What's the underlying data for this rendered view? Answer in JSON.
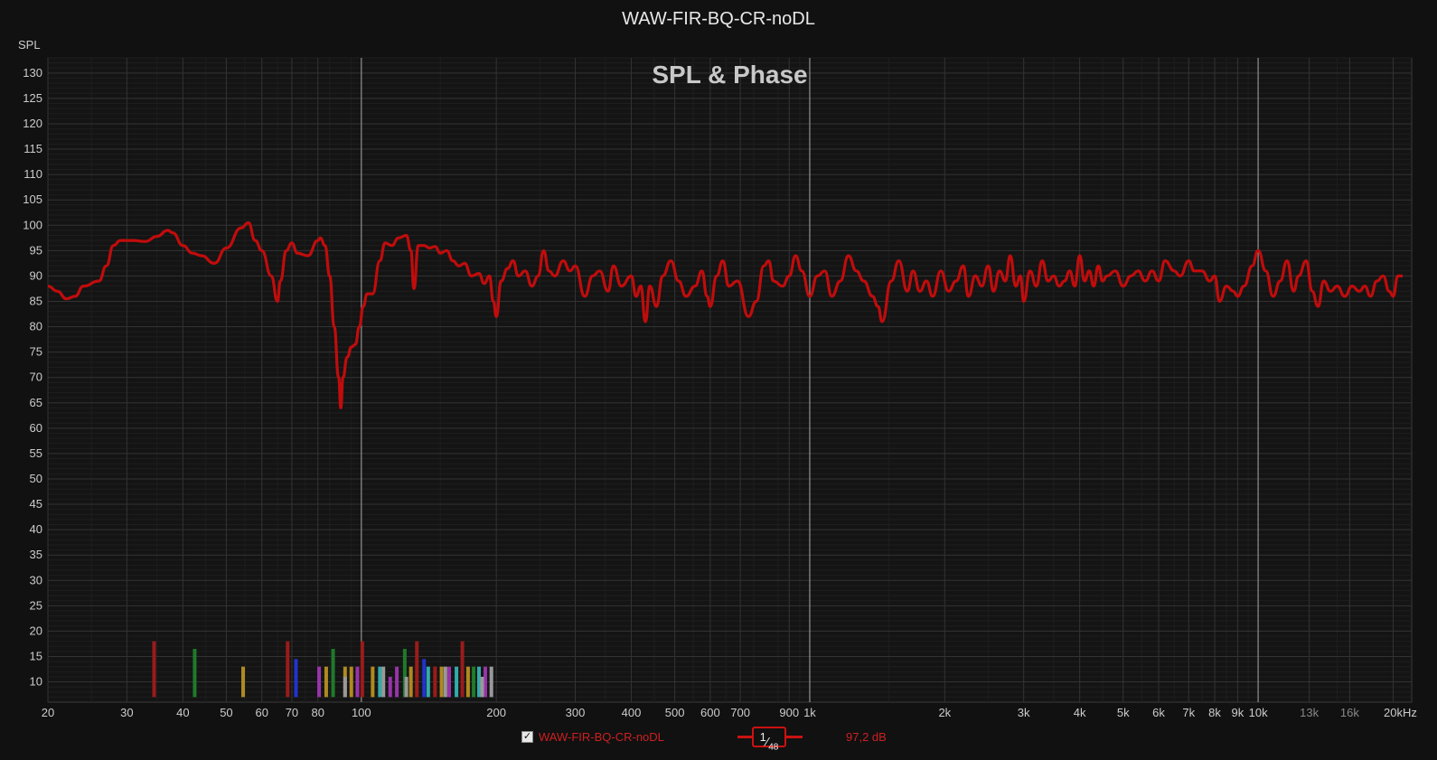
{
  "window_title": "WAW-FIR-BQ-CR-noDL",
  "graph_label": "SPL & Phase",
  "y_axis_label": "SPL",
  "x_unit": "Hz",
  "legend": {
    "series_name": "WAW-FIR-BQ-CR-noDL",
    "checked": true,
    "smoothing_num": "1",
    "smoothing_den": "48",
    "level": "97,2 dB"
  },
  "colors": {
    "background": "#111111",
    "trace": "#c00c0c",
    "grid": "#333333"
  },
  "chart_data": {
    "type": "line",
    "title": "SPL & Phase",
    "xlabel": "",
    "ylabel": "SPL",
    "x_scale": "log",
    "xlim": [
      20,
      22000
    ],
    "ylim": [
      6,
      133
    ],
    "grid": true,
    "x_ticks": [
      {
        "v": 20,
        "label": "20"
      },
      {
        "v": 30,
        "label": "30"
      },
      {
        "v": 40,
        "label": "40"
      },
      {
        "v": 50,
        "label": "50"
      },
      {
        "v": 60,
        "label": "60"
      },
      {
        "v": 70,
        "label": "70"
      },
      {
        "v": 80,
        "label": "80"
      },
      {
        "v": 100,
        "label": "100"
      },
      {
        "v": 200,
        "label": "200"
      },
      {
        "v": 300,
        "label": "300"
      },
      {
        "v": 400,
        "label": "400"
      },
      {
        "v": 500,
        "label": "500"
      },
      {
        "v": 600,
        "label": "600"
      },
      {
        "v": 700,
        "label": "700"
      },
      {
        "v": 900,
        "label": "900"
      },
      {
        "v": 1000,
        "label": "1k"
      },
      {
        "v": 2000,
        "label": "2k"
      },
      {
        "v": 3000,
        "label": "3k"
      },
      {
        "v": 4000,
        "label": "4k"
      },
      {
        "v": 5000,
        "label": "5k"
      },
      {
        "v": 6000,
        "label": "6k"
      },
      {
        "v": 7000,
        "label": "7k"
      },
      {
        "v": 8000,
        "label": "8k"
      },
      {
        "v": 9000,
        "label": "9k"
      },
      {
        "v": 10000,
        "label": "10k"
      },
      {
        "v": 13000,
        "label": "13k"
      },
      {
        "v": 16000,
        "label": "16k"
      },
      {
        "v": 20000,
        "label": "20kHz"
      }
    ],
    "y_ticks": [
      10,
      15,
      20,
      25,
      30,
      35,
      40,
      45,
      50,
      55,
      60,
      65,
      70,
      75,
      80,
      85,
      90,
      95,
      100,
      105,
      110,
      115,
      120,
      125,
      130
    ],
    "series": [
      {
        "name": "WAW-FIR-BQ-CR-noDL",
        "color": "#c00c0c",
        "points": [
          [
            20,
            88
          ],
          [
            21,
            87
          ],
          [
            22,
            85.5
          ],
          [
            23,
            86
          ],
          [
            24,
            88
          ],
          [
            26,
            89
          ],
          [
            27,
            92
          ],
          [
            28,
            96
          ],
          [
            29,
            97
          ],
          [
            31,
            97
          ],
          [
            33,
            96.8
          ],
          [
            35,
            97.8
          ],
          [
            37,
            99
          ],
          [
            38,
            98.5
          ],
          [
            40,
            96
          ],
          [
            42,
            94.5
          ],
          [
            44,
            94
          ],
          [
            47,
            92.5
          ],
          [
            50,
            95.5
          ],
          [
            54,
            99.5
          ],
          [
            56,
            100.5
          ],
          [
            58,
            97
          ],
          [
            60,
            95
          ],
          [
            63,
            90
          ],
          [
            65,
            85
          ],
          [
            66,
            89
          ],
          [
            68,
            95
          ],
          [
            70,
            96.5
          ],
          [
            72,
            94.5
          ],
          [
            76,
            94
          ],
          [
            80,
            97
          ],
          [
            81,
            97.5
          ],
          [
            83,
            96
          ],
          [
            85,
            90
          ],
          [
            87,
            80
          ],
          [
            89,
            70
          ],
          [
            90,
            64
          ],
          [
            91,
            70
          ],
          [
            93,
            74
          ],
          [
            95,
            76
          ],
          [
            97,
            76.5
          ],
          [
            99,
            80
          ],
          [
            101,
            84
          ],
          [
            103,
            86.5
          ],
          [
            106,
            86.5
          ],
          [
            110,
            93
          ],
          [
            113,
            96.5
          ],
          [
            117,
            96
          ],
          [
            121,
            97.5
          ],
          [
            126,
            98
          ],
          [
            129,
            95
          ],
          [
            131,
            87.5
          ],
          [
            134,
            96
          ],
          [
            138,
            96
          ],
          [
            142,
            95.5
          ],
          [
            146,
            95.8
          ],
          [
            150,
            94.5
          ],
          [
            155,
            95
          ],
          [
            160,
            93
          ],
          [
            165,
            92
          ],
          [
            170,
            92.5
          ],
          [
            176,
            90
          ],
          [
            183,
            90.5
          ],
          [
            188,
            88.5
          ],
          [
            193,
            90
          ],
          [
            197,
            85
          ],
          [
            200,
            82
          ],
          [
            205,
            89
          ],
          [
            212,
            91.5
          ],
          [
            218,
            93
          ],
          [
            224,
            90
          ],
          [
            232,
            91
          ],
          [
            240,
            88
          ],
          [
            248,
            90
          ],
          [
            255,
            95
          ],
          [
            262,
            91
          ],
          [
            270,
            90
          ],
          [
            282,
            93
          ],
          [
            292,
            91
          ],
          [
            300,
            92
          ],
          [
            315,
            86
          ],
          [
            328,
            90
          ],
          [
            340,
            91
          ],
          [
            355,
            87
          ],
          [
            365,
            92
          ],
          [
            380,
            88
          ],
          [
            400,
            90
          ],
          [
            410,
            86
          ],
          [
            420,
            88
          ],
          [
            430,
            81
          ],
          [
            440,
            88
          ],
          [
            455,
            84
          ],
          [
            470,
            90
          ],
          [
            490,
            93
          ],
          [
            510,
            89
          ],
          [
            530,
            86
          ],
          [
            555,
            88
          ],
          [
            575,
            91
          ],
          [
            590,
            86
          ],
          [
            600,
            84
          ],
          [
            620,
            90
          ],
          [
            640,
            93
          ],
          [
            660,
            88
          ],
          [
            690,
            89
          ],
          [
            730,
            82
          ],
          [
            760,
            85
          ],
          [
            790,
            92
          ],
          [
            810,
            93
          ],
          [
            830,
            89
          ],
          [
            870,
            88
          ],
          [
            900,
            90
          ],
          [
            930,
            94
          ],
          [
            960,
            91
          ],
          [
            1000,
            86
          ],
          [
            1040,
            90
          ],
          [
            1080,
            91
          ],
          [
            1120,
            86
          ],
          [
            1170,
            89
          ],
          [
            1220,
            94
          ],
          [
            1270,
            91
          ],
          [
            1320,
            89
          ],
          [
            1380,
            86
          ],
          [
            1420,
            84
          ],
          [
            1450,
            81
          ],
          [
            1520,
            89
          ],
          [
            1580,
            93
          ],
          [
            1650,
            87
          ],
          [
            1700,
            91
          ],
          [
            1760,
            87
          ],
          [
            1820,
            89
          ],
          [
            1880,
            86
          ],
          [
            1960,
            91
          ],
          [
            2040,
            87
          ],
          [
            2120,
            89
          ],
          [
            2200,
            92
          ],
          [
            2260,
            86
          ],
          [
            2340,
            90
          ],
          [
            2420,
            88
          ],
          [
            2500,
            92
          ],
          [
            2570,
            87
          ],
          [
            2650,
            91
          ],
          [
            2730,
            89
          ],
          [
            2800,
            94
          ],
          [
            2880,
            88
          ],
          [
            2950,
            90
          ],
          [
            3000,
            85
          ],
          [
            3100,
            91
          ],
          [
            3200,
            88
          ],
          [
            3300,
            93
          ],
          [
            3400,
            89
          ],
          [
            3500,
            90
          ],
          [
            3600,
            88
          ],
          [
            3700,
            89
          ],
          [
            3800,
            91
          ],
          [
            3900,
            88
          ],
          [
            4000,
            94
          ],
          [
            4100,
            89
          ],
          [
            4200,
            91
          ],
          [
            4300,
            88
          ],
          [
            4400,
            92
          ],
          [
            4500,
            89
          ],
          [
            4600,
            90
          ],
          [
            4800,
            91
          ],
          [
            5000,
            88
          ],
          [
            5200,
            90
          ],
          [
            5400,
            91
          ],
          [
            5600,
            89
          ],
          [
            5800,
            91
          ],
          [
            6000,
            89
          ],
          [
            6200,
            93
          ],
          [
            6500,
            91
          ],
          [
            6700,
            90
          ],
          [
            7000,
            93
          ],
          [
            7200,
            91
          ],
          [
            7500,
            91
          ],
          [
            7800,
            89
          ],
          [
            8000,
            90
          ],
          [
            8200,
            85
          ],
          [
            8500,
            88
          ],
          [
            8800,
            87
          ],
          [
            9000,
            86
          ],
          [
            9300,
            88
          ],
          [
            9700,
            92
          ],
          [
            10000,
            95
          ],
          [
            10400,
            91
          ],
          [
            10800,
            86
          ],
          [
            11200,
            89
          ],
          [
            11600,
            93
          ],
          [
            12000,
            87
          ],
          [
            12300,
            90
          ],
          [
            12800,
            93
          ],
          [
            13200,
            87
          ],
          [
            13600,
            84
          ],
          [
            14000,
            89
          ],
          [
            14500,
            87
          ],
          [
            15000,
            88
          ],
          [
            15600,
            86
          ],
          [
            16200,
            88
          ],
          [
            16800,
            87
          ],
          [
            17300,
            88
          ],
          [
            17800,
            86
          ],
          [
            18400,
            89
          ],
          [
            19000,
            90
          ],
          [
            19600,
            87
          ],
          [
            20000,
            86
          ],
          [
            20500,
            90
          ],
          [
            21000,
            90
          ]
        ]
      }
    ],
    "filter_bars": [
      {
        "f": 34.5,
        "h": 18,
        "c": "#9b1b1b"
      },
      {
        "f": 42.5,
        "h": 16.5,
        "c": "#1f7a2a"
      },
      {
        "f": 54.5,
        "h": 13,
        "c": "#b08a20"
      },
      {
        "f": 68.5,
        "h": 18,
        "c": "#9b1b1b"
      },
      {
        "f": 71.5,
        "h": 14.5,
        "c": "#2233cc"
      },
      {
        "f": 80.5,
        "h": 13,
        "c": "#9933aa"
      },
      {
        "f": 83.5,
        "h": 13,
        "c": "#b08a20"
      },
      {
        "f": 86.5,
        "h": 16.5,
        "c": "#1f7a2a"
      },
      {
        "f": 92,
        "h": 13,
        "c": "#b08a20"
      },
      {
        "f": 95,
        "h": 13,
        "c": "#b08a20"
      },
      {
        "f": 98,
        "h": 13,
        "c": "#9933aa"
      },
      {
        "f": 100.5,
        "h": 18,
        "c": "#9b1b1b"
      },
      {
        "f": 106,
        "h": 13,
        "c": "#b08a20"
      },
      {
        "f": 110,
        "h": 13,
        "c": "#33aaaa"
      },
      {
        "f": 116,
        "h": 11,
        "c": "#9933aa"
      },
      {
        "f": 120,
        "h": 13,
        "c": "#9933aa"
      },
      {
        "f": 125,
        "h": 16.5,
        "c": "#1f7a2a"
      },
      {
        "f": 129,
        "h": 13,
        "c": "#b08a20"
      },
      {
        "f": 133,
        "h": 18,
        "c": "#9b1b1b"
      },
      {
        "f": 138,
        "h": 14.5,
        "c": "#2233cc"
      },
      {
        "f": 141,
        "h": 13,
        "c": "#33aaaa"
      },
      {
        "f": 146,
        "h": 13,
        "c": "#9b1b1b"
      },
      {
        "f": 151,
        "h": 13,
        "c": "#b08a20"
      },
      {
        "f": 157,
        "h": 13,
        "c": "#9933aa"
      },
      {
        "f": 163,
        "h": 13,
        "c": "#33aaaa"
      },
      {
        "f": 168,
        "h": 18,
        "c": "#9b1b1b"
      },
      {
        "f": 173,
        "h": 13,
        "c": "#b08a20"
      },
      {
        "f": 178,
        "h": 13,
        "c": "#1f7a2a"
      },
      {
        "f": 183,
        "h": 13,
        "c": "#33aaaa"
      },
      {
        "f": 189,
        "h": 13,
        "c": "#9933aa"
      },
      {
        "f": 195,
        "h": 13,
        "c": "#999999"
      },
      {
        "f": 112,
        "h": 13,
        "c": "#999999"
      },
      {
        "f": 126,
        "h": 11,
        "c": "#999999"
      },
      {
        "f": 92,
        "h": 11,
        "c": "#999999"
      },
      {
        "f": 154,
        "h": 13,
        "c": "#999999"
      },
      {
        "f": 186,
        "h": 11,
        "c": "#999999"
      }
    ]
  }
}
